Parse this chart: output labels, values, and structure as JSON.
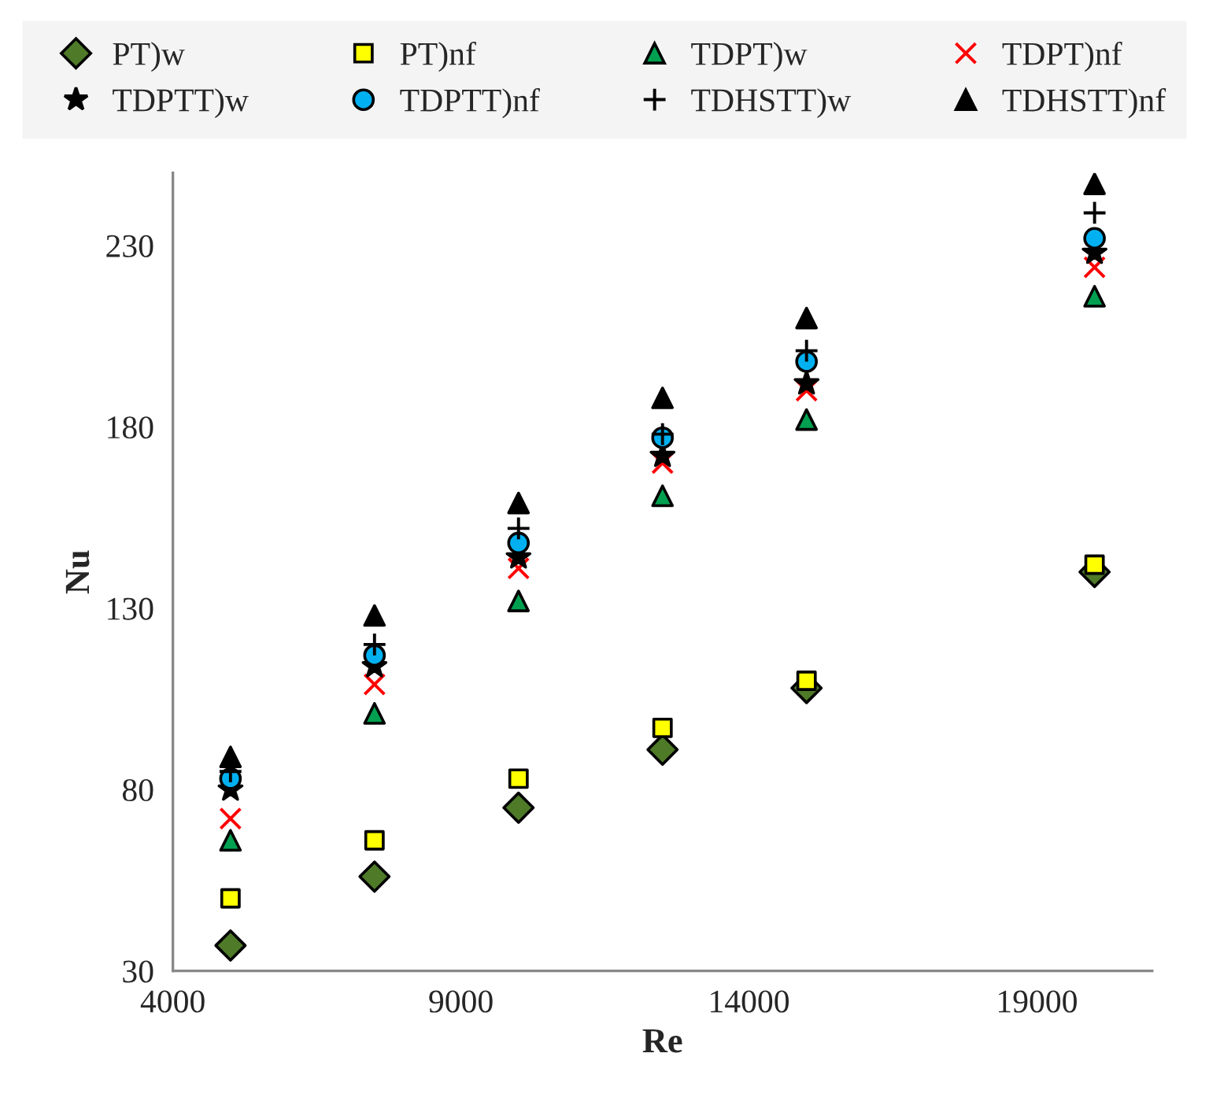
{
  "chart_data": {
    "type": "scatter",
    "xlabel": "Re",
    "ylabel": "Nu",
    "x": [
      5000,
      7500,
      10000,
      12500,
      15000,
      20000
    ],
    "xlim": [
      4000,
      21000
    ],
    "xticks": [
      4000,
      9000,
      14000,
      19000
    ],
    "ylim": [
      30,
      250
    ],
    "yticks": [
      30,
      80,
      130,
      180,
      230
    ],
    "grid": false,
    "legend": "top",
    "series": [
      {
        "name": "PT)w",
        "color": "#4f7a28",
        "marker": "diamond",
        "values": [
          37,
          56,
          75,
          91,
          108,
          140
        ]
      },
      {
        "name": "PT)nf",
        "color": "#ffff00",
        "marker": "square",
        "values": [
          50,
          66,
          83,
          97,
          110,
          142
        ]
      },
      {
        "name": "TDPT)w",
        "color": "#00a050",
        "marker": "triangle",
        "values": [
          66,
          101,
          132,
          161,
          182,
          216
        ]
      },
      {
        "name": "TDPT)nf",
        "color": "#ff0000",
        "marker": "cross",
        "values": [
          72,
          109,
          141,
          170,
          190,
          224
        ]
      },
      {
        "name": "TDPTT)w",
        "color": "#000000",
        "marker": "star",
        "values": [
          80,
          114,
          144,
          172,
          192,
          228
        ]
      },
      {
        "name": "TDPTT)nf",
        "color": "#00b0f0",
        "marker": "circle",
        "values": [
          83,
          117,
          148,
          177,
          198,
          232
        ]
      },
      {
        "name": "TDHSTT)w",
        "color": "#000000",
        "marker": "plus",
        "values": [
          85,
          120,
          152,
          178,
          201,
          239
        ]
      },
      {
        "name": "TDHSTT)nf",
        "color": "#000000",
        "marker": "triangle",
        "values": [
          89,
          128,
          159,
          188,
          210,
          247
        ]
      }
    ]
  }
}
